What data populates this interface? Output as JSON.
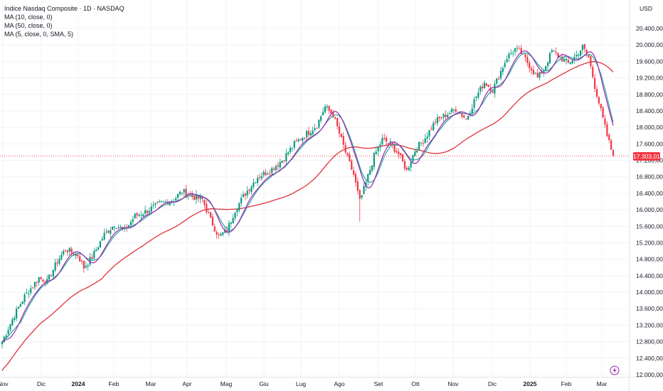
{
  "header": {
    "title": "Indice Nasdaq Composite · 1D · NASDAQ",
    "indicators": [
      "MA (10, close, 0)",
      "MA (50, close, 0)",
      "MA (5, close, 0, SMA, 5)"
    ]
  },
  "price_axis": {
    "currency": "USD",
    "last_price_label": "17.303,01"
  },
  "colors": {
    "up": "#089981",
    "down": "#f23645",
    "ma10": "#26a69a",
    "ma50": "#e0313d",
    "ma5": "#9c27b0",
    "grid": "#f0f3fa"
  },
  "icons": {
    "event": "lightning-icon"
  },
  "chart_data": {
    "type": "candlestick",
    "title": "Indice Nasdaq Composite · 1D · NASDAQ",
    "ylim": [
      12000,
      20800
    ],
    "y_ticks": [
      12000,
      12400,
      12800,
      13200,
      13600,
      14000,
      14400,
      14800,
      15200,
      15600,
      16000,
      16400,
      16800,
      17200,
      17600,
      18000,
      18400,
      18800,
      19200,
      19600,
      20000,
      20400
    ],
    "y_tick_labels": [
      "12.000,00",
      "12.400,00",
      "12.800,00",
      "13.200,00",
      "13.600,00",
      "14.000,00",
      "14.400,00",
      "14.800,00",
      "15.200,00",
      "15.600,00",
      "16.000,00",
      "16.400,00",
      "16.800,00",
      "17.200,00",
      "17.600,00",
      "18.000,00",
      "18.400,00",
      "18.800,00",
      "19.200,00",
      "19.600,00",
      "20.000,00",
      "20.400,00"
    ],
    "x_tick_labels": [
      "Nov",
      "Dic",
      "2024",
      "Feb",
      "Mar",
      "Apr",
      "Mag",
      "Giu",
      "Lug",
      "Ago",
      "Set",
      "Ott",
      "Nov",
      "Dic",
      "2025",
      "Feb",
      "Mar"
    ],
    "x_tick_bold": [
      false,
      false,
      true,
      false,
      false,
      false,
      false,
      false,
      false,
      false,
      false,
      false,
      false,
      false,
      true,
      false,
      false
    ],
    "grid": true,
    "last_price": 17303.01,
    "close_path": [
      [
        0,
        12800
      ],
      [
        6,
        13450
      ],
      [
        11,
        13900
      ],
      [
        18,
        14350
      ],
      [
        22,
        14250
      ],
      [
        27,
        14750
      ],
      [
        31,
        15050
      ],
      [
        37,
        14900
      ],
      [
        40,
        14600
      ],
      [
        44,
        14850
      ],
      [
        50,
        15400
      ],
      [
        55,
        15650
      ],
      [
        60,
        15500
      ],
      [
        65,
        15850
      ],
      [
        70,
        15950
      ],
      [
        77,
        16150
      ],
      [
        84,
        16250
      ],
      [
        88,
        16450
      ],
      [
        93,
        16320
      ],
      [
        98,
        16250
      ],
      [
        102,
        15750
      ],
      [
        106,
        15350
      ],
      [
        110,
        15500
      ],
      [
        114,
        16000
      ],
      [
        119,
        16400
      ],
      [
        125,
        16800
      ],
      [
        131,
        16950
      ],
      [
        137,
        17200
      ],
      [
        143,
        17600
      ],
      [
        149,
        17850
      ],
      [
        154,
        18050
      ],
      [
        158,
        18500
      ],
      [
        162,
        18300
      ],
      [
        165,
        17850
      ],
      [
        169,
        17250
      ],
      [
        172,
        16850
      ],
      [
        175,
        16200
      ],
      [
        178,
        16650
      ],
      [
        182,
        17300
      ],
      [
        186,
        17700
      ],
      [
        190,
        17600
      ],
      [
        194,
        17350
      ],
      [
        198,
        16950
      ],
      [
        202,
        17450
      ],
      [
        207,
        17750
      ],
      [
        212,
        18150
      ],
      [
        217,
        18300
      ],
      [
        222,
        18450
      ],
      [
        227,
        18200
      ],
      [
        232,
        18750
      ],
      [
        236,
        19100
      ],
      [
        240,
        18900
      ],
      [
        243,
        19250
      ],
      [
        247,
        19700
      ],
      [
        251,
        19900
      ],
      [
        254,
        19800
      ],
      [
        258,
        19500
      ],
      [
        262,
        19200
      ],
      [
        265,
        19400
      ],
      [
        269,
        19850
      ],
      [
        273,
        19700
      ],
      [
        277,
        19550
      ],
      [
        281,
        19750
      ],
      [
        284,
        19950
      ],
      [
        287,
        19700
      ],
      [
        290,
        19000
      ],
      [
        293,
        18400
      ],
      [
        296,
        17800
      ],
      [
        299,
        17303.01
      ]
    ]
  }
}
